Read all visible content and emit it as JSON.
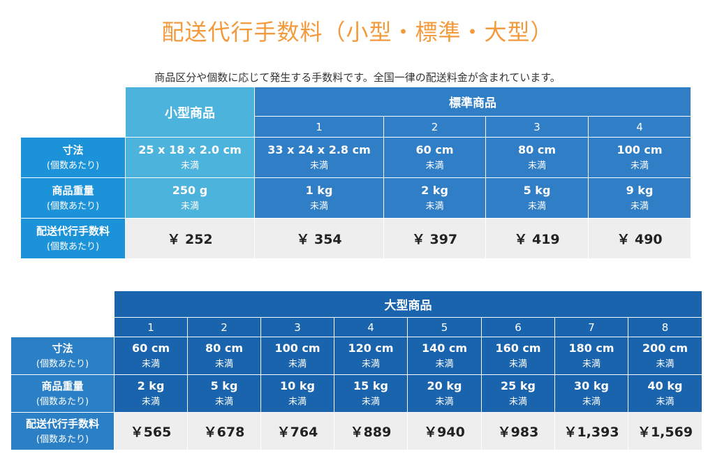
{
  "title": "配送代行手数料（小型・標準・大型）",
  "subtitle": "商品区分や個数に応じて発生する手数料です。全国一律の配送料金が含まれています。",
  "per_item": "(個数あたり)",
  "under": "未満",
  "row_labels": {
    "size": "寸法",
    "weight": "商品重量",
    "fee": "配送代行手数料"
  },
  "table1": {
    "small_header": "小型商品",
    "standard_header": "標準商品",
    "small": {
      "size": "25 x 18 x 2.0 cm",
      "weight": "250 g",
      "fee": "￥ 252"
    },
    "standard": [
      {
        "tier": "1",
        "size": "33 x 24 x 2.8 cm",
        "weight": "1 kg",
        "fee": "￥ 354"
      },
      {
        "tier": "2",
        "size": "60 cm",
        "weight": "2 kg",
        "fee": "￥ 397"
      },
      {
        "tier": "3",
        "size": "80 cm",
        "weight": "5 kg",
        "fee": "￥ 419"
      },
      {
        "tier": "4",
        "size": "100 cm",
        "weight": "9 kg",
        "fee": "￥ 490"
      }
    ]
  },
  "table2": {
    "large_header": "大型商品",
    "large": [
      {
        "tier": "1",
        "size": "60 cm",
        "weight": "2 kg",
        "fee": "￥565"
      },
      {
        "tier": "2",
        "size": "80 cm",
        "weight": "5 kg",
        "fee": "￥678"
      },
      {
        "tier": "3",
        "size": "100 cm",
        "weight": "10 kg",
        "fee": "￥764"
      },
      {
        "tier": "4",
        "size": "120 cm",
        "weight": "15 kg",
        "fee": "￥889"
      },
      {
        "tier": "5",
        "size": "140 cm",
        "weight": "20 kg",
        "fee": "￥940"
      },
      {
        "tier": "6",
        "size": "160 cm",
        "weight": "25 kg",
        "fee": "￥983"
      },
      {
        "tier": "7",
        "size": "180 cm",
        "weight": "30 kg",
        "fee": "￥1,393"
      },
      {
        "tier": "8",
        "size": "200 cm",
        "weight": "40 kg",
        "fee": "￥1,569"
      }
    ]
  }
}
